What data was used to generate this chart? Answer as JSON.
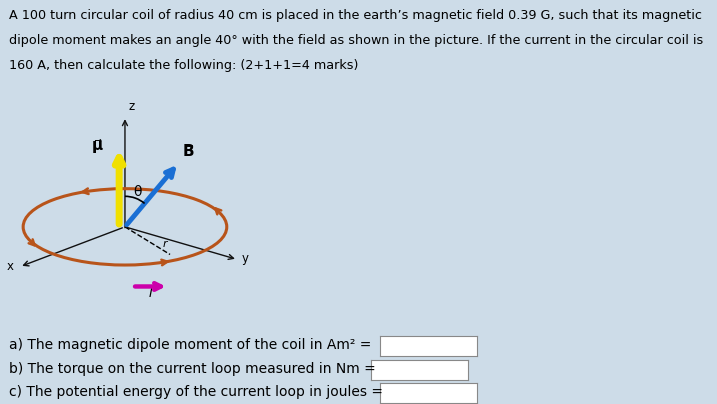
{
  "background_color": "#cddce8",
  "panel_bg": "#dde8f0",
  "title_line1": "A 100 turn circular coil of radius 40 cm is placed in the earth’s magnetic field 0.39 G, such that its magnetic",
  "title_line2": "dipole moment makes an angle 40° with the field as shown in the picture. If the current in the circular coil is",
  "title_line3": "160 A, then calculate the following: (2+1+1=4 marks)",
  "title_fontsize": 9.2,
  "question_a": "a) The magnetic dipole moment of the coil in Am² =",
  "question_b": "b) The torque on the current loop measured in Nm =",
  "question_c": "c) The potential energy of the current loop in joules =",
  "q_fontsize": 10.0,
  "ellipse_color": "#b8541a",
  "ellipse_lw": 2.2,
  "mu_arrow_color": "#f0e000",
  "B_arrow_color": "#1a6fd4",
  "I_arrow_color": "#cc00aa",
  "axis_color": "#111111",
  "z_label": "z",
  "x_label": "x",
  "y_label": "y",
  "mu_label": "μ⃗",
  "B_label": "B⃗",
  "theta_label": "θ",
  "I_label": "I",
  "r_label": "r",
  "box_color": "#ffffff",
  "box_edgecolor": "#888888"
}
